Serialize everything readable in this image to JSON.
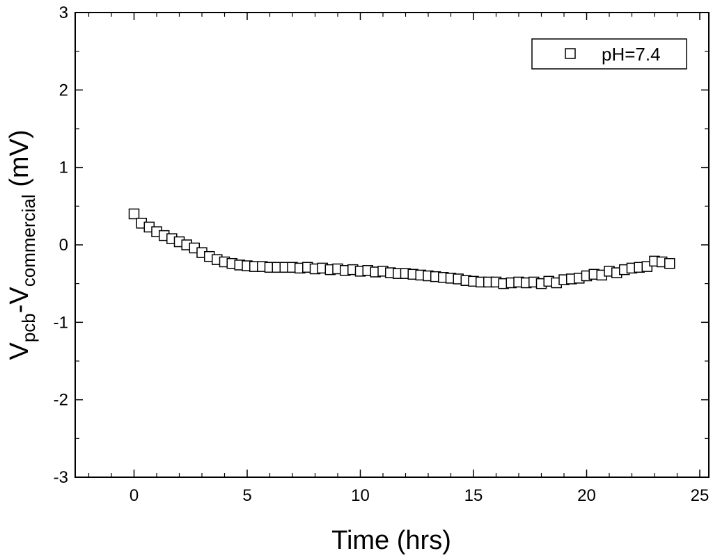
{
  "chart_data": {
    "type": "scatter",
    "xlabel": "Time (hrs)",
    "ylabel": {
      "v1": "V",
      "sub1": "pcb",
      "dash": "-V",
      "sub2": "commercial",
      "unit": " (mV)"
    },
    "xlim": [
      -2.6,
      25.4
    ],
    "ylim": [
      -3,
      3
    ],
    "x_ticks": [
      0,
      5,
      10,
      15,
      20,
      25
    ],
    "x_tick_labels": [
      "0",
      "5",
      "10",
      "15",
      "20",
      "25"
    ],
    "y_ticks": [
      -3,
      -2,
      -1,
      0,
      1,
      2,
      3
    ],
    "y_tick_labels": [
      "-3",
      "-2",
      "-1",
      "0",
      "1",
      "2",
      "3"
    ],
    "legend_position": "top-right",
    "series": [
      {
        "name": "pH=7.4",
        "marker": "open-square",
        "color": "#000000",
        "x": [
          0,
          0.33,
          0.67,
          1.0,
          1.33,
          1.67,
          2.0,
          2.33,
          2.67,
          3.0,
          3.33,
          3.67,
          4.0,
          4.33,
          4.67,
          5.0,
          5.33,
          5.67,
          6.0,
          6.33,
          6.67,
          7.0,
          7.33,
          7.67,
          8.0,
          8.33,
          8.67,
          9.0,
          9.33,
          9.67,
          10.0,
          10.33,
          10.67,
          11.0,
          11.33,
          11.67,
          12.0,
          12.33,
          12.67,
          13.0,
          13.33,
          13.67,
          14.0,
          14.33,
          14.67,
          15.0,
          15.33,
          15.67,
          16.0,
          16.33,
          16.67,
          17.0,
          17.33,
          17.67,
          18.0,
          18.33,
          18.67,
          19.0,
          19.33,
          19.67,
          20.0,
          20.33,
          20.67,
          21.0,
          21.33,
          21.67,
          22.0,
          22.33,
          22.67,
          23.0,
          23.33,
          23.67
        ],
        "y": [
          0.4,
          0.28,
          0.23,
          0.17,
          0.12,
          0.08,
          0.04,
          0.0,
          -0.04,
          -0.1,
          -0.15,
          -0.19,
          -0.22,
          -0.24,
          -0.26,
          -0.27,
          -0.28,
          -0.28,
          -0.29,
          -0.29,
          -0.29,
          -0.29,
          -0.3,
          -0.29,
          -0.31,
          -0.3,
          -0.32,
          -0.31,
          -0.33,
          -0.32,
          -0.34,
          -0.33,
          -0.35,
          -0.34,
          -0.36,
          -0.37,
          -0.37,
          -0.38,
          -0.39,
          -0.4,
          -0.41,
          -0.42,
          -0.43,
          -0.44,
          -0.46,
          -0.47,
          -0.48,
          -0.48,
          -0.48,
          -0.5,
          -0.49,
          -0.48,
          -0.49,
          -0.48,
          -0.5,
          -0.47,
          -0.49,
          -0.45,
          -0.44,
          -0.43,
          -0.4,
          -0.38,
          -0.39,
          -0.34,
          -0.36,
          -0.32,
          -0.3,
          -0.29,
          -0.28,
          -0.21,
          -0.22,
          -0.24
        ]
      }
    ]
  }
}
